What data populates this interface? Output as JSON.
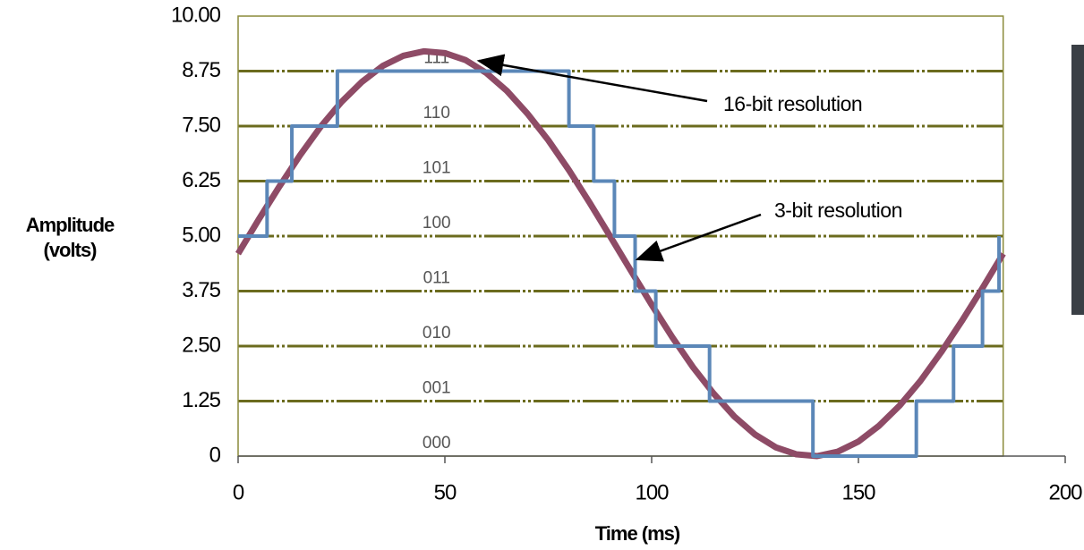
{
  "chart_data": {
    "type": "line",
    "ylabel": [
      "Amplitude",
      "(volts)"
    ],
    "xlabel": "Time (ms)",
    "xlim": [
      0,
      200
    ],
    "ylim": [
      0,
      10
    ],
    "xticks": [
      0,
      50,
      100,
      150,
      200
    ],
    "yticks": [
      0,
      1.25,
      {
        "value": 2.5,
        "label": "2.50"
      },
      3.75,
      {
        "value": 5,
        "label": "5.00"
      },
      6.25,
      {
        "value": 7.5,
        "label": "7.50"
      },
      8.75,
      {
        "value": 10,
        "label": "10.00"
      }
    ],
    "grid": true,
    "level_codes": [
      "000",
      "001",
      "010",
      "011",
      "100",
      "101",
      "110",
      "111"
    ],
    "series": [
      {
        "name": "16-bit resolution",
        "color": "#8e4b66",
        "x": [
          0,
          5,
          10,
          15,
          20,
          25,
          30,
          35,
          40,
          45,
          50,
          55,
          60,
          65,
          70,
          75,
          80,
          85,
          90,
          95,
          100,
          105,
          110,
          115,
          120,
          125,
          130,
          135,
          140,
          145,
          150,
          155,
          160,
          165,
          170,
          175,
          180,
          185
        ],
        "values": [
          4.6,
          5.38,
          6.13,
          6.84,
          7.49,
          8.05,
          8.51,
          8.87,
          9.1,
          9.2,
          9.16,
          9.0,
          8.71,
          8.3,
          7.78,
          7.18,
          6.5,
          5.76,
          4.99,
          4.21,
          3.44,
          2.7,
          2.02,
          1.42,
          0.9,
          0.49,
          0.2,
          0.04,
          0,
          0.1,
          0.33,
          0.69,
          1.15,
          1.71,
          2.36,
          3.07,
          3.82,
          4.6
        ]
      },
      {
        "name": "3-bit resolution",
        "color": "#5b87b8",
        "x": [
          0,
          7,
          7,
          13,
          13,
          24,
          24,
          80,
          80,
          86,
          86,
          91,
          91,
          96,
          96,
          101,
          101,
          114,
          114,
          139,
          139,
          164,
          164,
          173,
          173,
          180,
          180,
          184,
          184
        ],
        "values": [
          5,
          5,
          6.25,
          6.25,
          7.5,
          7.5,
          8.75,
          8.75,
          7.5,
          7.5,
          6.25,
          6.25,
          5,
          5,
          3.75,
          3.75,
          2.5,
          2.5,
          1.25,
          1.25,
          0,
          0,
          1.25,
          1.25,
          2.5,
          2.5,
          3.75,
          3.75,
          5
        ]
      }
    ]
  }
}
